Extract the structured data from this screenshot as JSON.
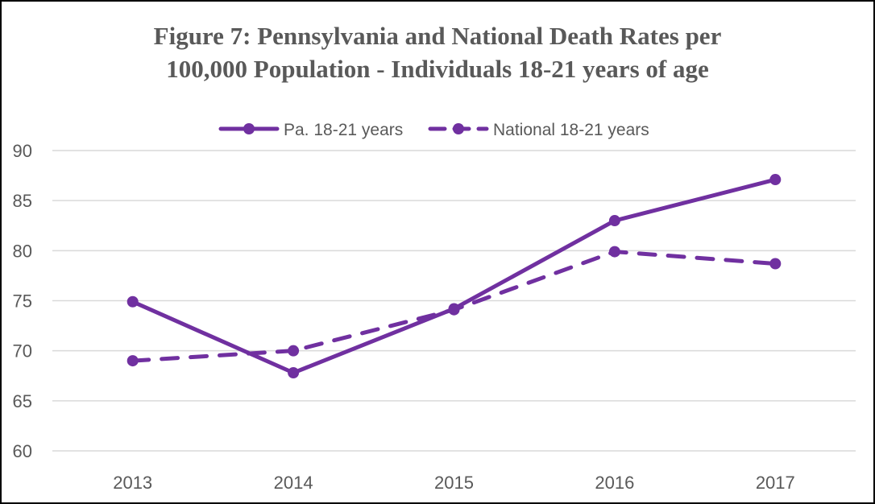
{
  "chart_data": {
    "type": "line",
    "title_lines": [
      "Figure 7:  Pennsylvania and National Death Rates per",
      "100,000 Population  - Individuals  18-21 years of age"
    ],
    "xlabel": "",
    "ylabel": "",
    "categories": [
      "2013",
      "2014",
      "2015",
      "2016",
      "2017"
    ],
    "ylim": [
      60,
      90
    ],
    "yticks": [
      60,
      65,
      70,
      75,
      80,
      85,
      90
    ],
    "grid": true,
    "legend_position": "top",
    "series": [
      {
        "name": "Pa. 18-21 years",
        "values": [
          74.9,
          67.8,
          74.2,
          83.0,
          87.1
        ],
        "style": "solid",
        "color": "#7030A0"
      },
      {
        "name": "National 18-21 years",
        "values": [
          69.0,
          70.0,
          74.1,
          79.9,
          78.7
        ],
        "style": "dashed",
        "color": "#7030A0"
      }
    ]
  }
}
